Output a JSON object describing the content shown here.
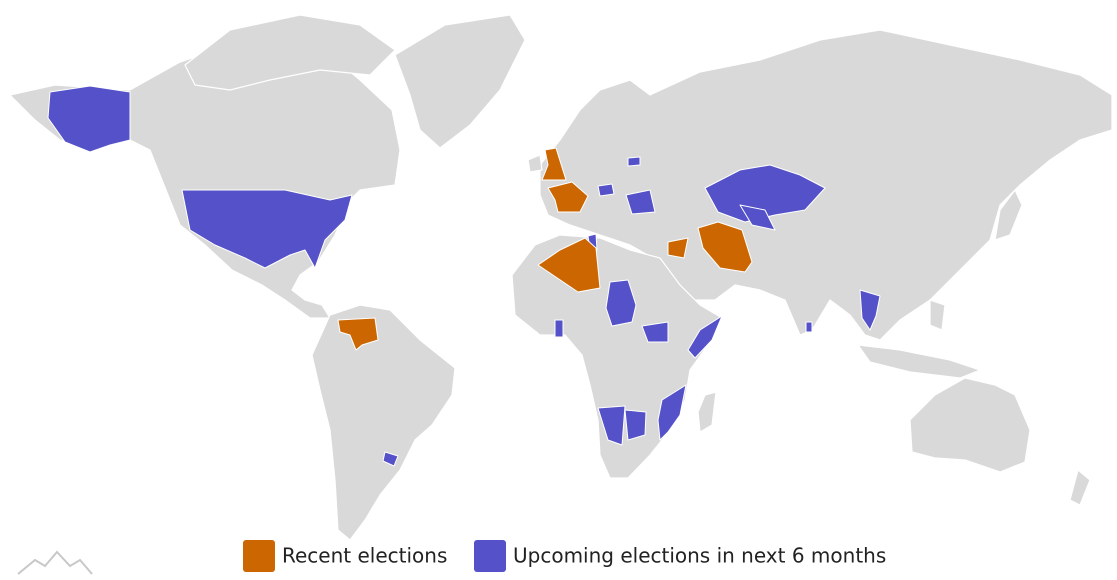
{
  "legend": {
    "items": [
      {
        "label": "Recent elections",
        "color": "#cc6600"
      },
      {
        "label": "Upcoming elections in next 6 months",
        "color": "#5451c9"
      }
    ]
  }
}
